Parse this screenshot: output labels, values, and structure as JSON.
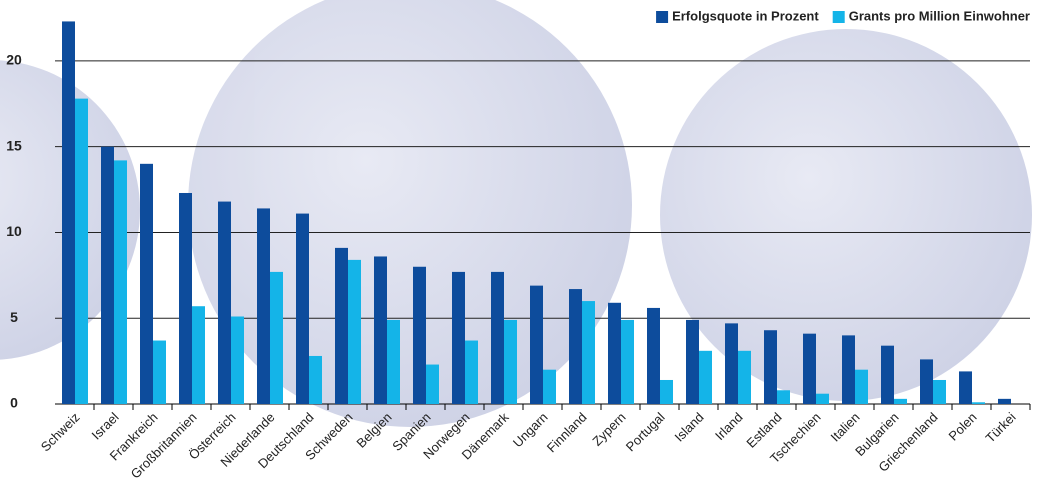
{
  "chart_data": {
    "type": "bar",
    "categories": [
      "Schweiz",
      "Israel",
      "Frankreich",
      "Großbritannien",
      "Österreich",
      "Niederlande",
      "Deutschland",
      "Schweden",
      "Belgien",
      "Spanien",
      "Norwegen",
      "Dänemark",
      "Ungarn",
      "Finnland",
      "Zypern",
      "Portugal",
      "Island",
      "Irland",
      "Estland",
      "Tschechien",
      "Italien",
      "Bulgarien",
      "Griechenland",
      "Polen",
      "Türkei"
    ],
    "series": [
      {
        "name": "Erfolgsquote in Prozent",
        "color": "#0d4c9c",
        "values": [
          22.3,
          15.0,
          14.0,
          12.3,
          11.8,
          11.4,
          11.1,
          9.1,
          8.6,
          8.0,
          7.7,
          7.7,
          6.9,
          6.7,
          5.9,
          5.6,
          4.9,
          4.7,
          4.3,
          4.1,
          4.0,
          3.4,
          2.6,
          1.9,
          0.3
        ]
      },
      {
        "name": "Grants pro Million Einwohner",
        "color": "#14b4e8",
        "values": [
          17.8,
          14.2,
          3.7,
          5.7,
          5.1,
          7.7,
          2.8,
          8.4,
          4.9,
          2.3,
          3.7,
          4.9,
          2.0,
          6.0,
          4.9,
          1.4,
          3.1,
          3.1,
          0.8,
          0.6,
          2.0,
          0.3,
          1.4,
          0.1,
          null
        ]
      }
    ],
    "ylim": [
      0,
      22.5
    ],
    "yticks": [
      0,
      5,
      10,
      15,
      20
    ],
    "grid": true,
    "legend": "top-right"
  }
}
